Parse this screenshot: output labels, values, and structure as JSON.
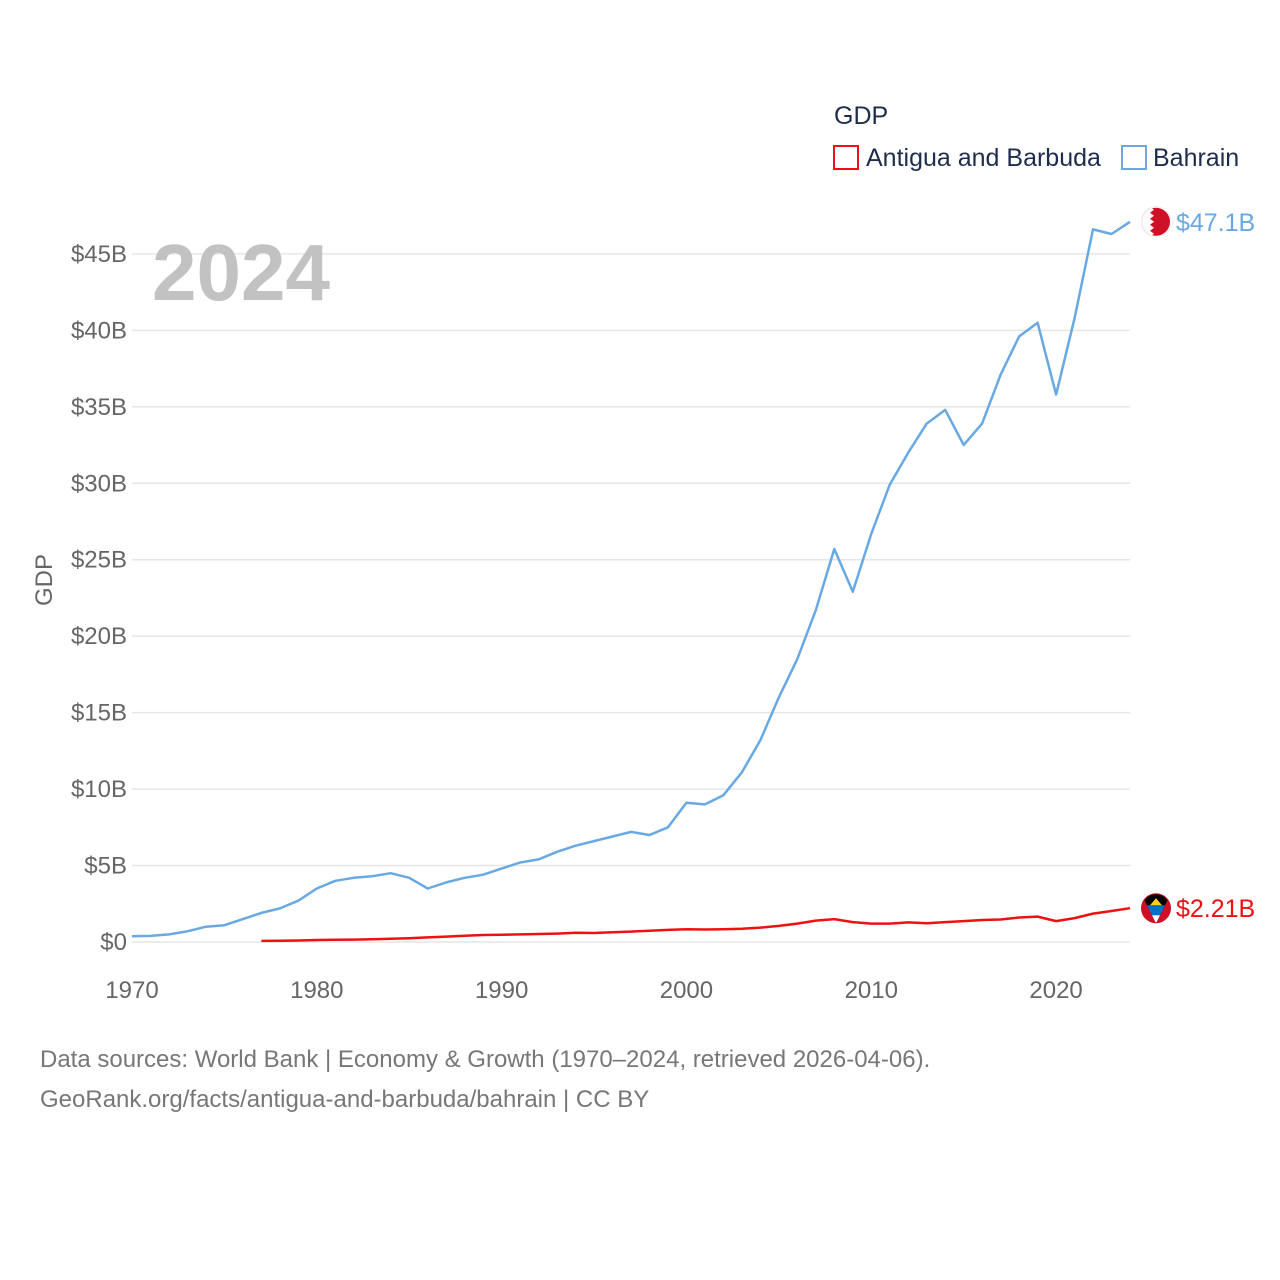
{
  "chart_data": {
    "type": "line",
    "year_display": "2024",
    "ylabel": "GDP",
    "xlim": [
      1970,
      2024
    ],
    "ylim": [
      0,
      48000000000
    ],
    "x_ticks": [
      1970,
      1980,
      1990,
      2000,
      2010,
      2020
    ],
    "x_tick_labels": [
      "1970",
      "1980",
      "1990",
      "2000",
      "2010",
      "2020"
    ],
    "y_ticks": [
      0,
      5000000000,
      10000000000,
      15000000000,
      20000000000,
      25000000000,
      30000000000,
      35000000000,
      40000000000,
      45000000000
    ],
    "y_tick_labels": [
      "$0",
      "$5B",
      "$10B",
      "$15B",
      "$20B",
      "$25B",
      "$30B",
      "$35B",
      "$40B",
      "$45B"
    ],
    "legend": {
      "title": "GDP",
      "position": "top-right",
      "entries": [
        "Antigua and Barbuda",
        "Bahrain"
      ]
    },
    "series": [
      {
        "name": "Antigua and Barbuda",
        "color": "#ee1111",
        "end_label": "$2.21B",
        "flag_icon": "antigua-flag-icon",
        "x": [
          1977,
          1978,
          1979,
          1980,
          1981,
          1982,
          1983,
          1984,
          1985,
          1986,
          1987,
          1988,
          1989,
          1990,
          1991,
          1992,
          1993,
          1994,
          1995,
          1996,
          1997,
          1998,
          1999,
          2000,
          2001,
          2002,
          2003,
          2004,
          2005,
          2006,
          2007,
          2008,
          2009,
          2010,
          2011,
          2012,
          2013,
          2014,
          2015,
          2016,
          2017,
          2018,
          2019,
          2020,
          2021,
          2022,
          2023,
          2024
        ],
        "values": [
          70000000,
          80000000,
          100000000,
          130000000,
          150000000,
          160000000,
          180000000,
          210000000,
          250000000,
          300000000,
          350000000,
          410000000,
          460000000,
          480000000,
          500000000,
          520000000,
          550000000,
          600000000,
          590000000,
          640000000,
          680000000,
          740000000,
          790000000,
          830000000,
          820000000,
          830000000,
          870000000,
          940000000,
          1050000000,
          1200000000,
          1400000000,
          1500000000,
          1300000000,
          1200000000,
          1200000000,
          1280000000,
          1230000000,
          1300000000,
          1370000000,
          1440000000,
          1470000000,
          1600000000,
          1660000000,
          1370000000,
          1560000000,
          1860000000,
          2030000000,
          2210000000
        ]
      },
      {
        "name": "Bahrain",
        "color": "#69a9e3",
        "end_label": "$47.1B",
        "flag_icon": "bahrain-flag-icon",
        "x": [
          1970,
          1971,
          1972,
          1973,
          1974,
          1975,
          1976,
          1977,
          1978,
          1979,
          1980,
          1981,
          1982,
          1983,
          1984,
          1985,
          1986,
          1987,
          1988,
          1989,
          1990,
          1991,
          1992,
          1993,
          1994,
          1995,
          1996,
          1997,
          1998,
          1999,
          2000,
          2001,
          2002,
          2003,
          2004,
          2005,
          2006,
          2007,
          2008,
          2009,
          2010,
          2011,
          2012,
          2013,
          2014,
          2015,
          2016,
          2017,
          2018,
          2019,
          2020,
          2021,
          2022,
          2023,
          2024
        ],
        "values": [
          380000000,
          400000000,
          500000000,
          700000000,
          1000000000,
          1100000000,
          1500000000,
          1900000000,
          2200000000,
          2700000000,
          3500000000,
          4000000000,
          4200000000,
          4300000000,
          4500000000,
          4200000000,
          3500000000,
          3900000000,
          4200000000,
          4400000000,
          4800000000,
          5200000000,
          5400000000,
          5900000000,
          6300000000,
          6600000000,
          6900000000,
          7200000000,
          7000000000,
          7500000000,
          9100000000,
          9000000000,
          9600000000,
          11100000000,
          13200000000,
          16000000000,
          18500000000,
          21700000000,
          25700000000,
          22900000000,
          26700000000,
          29900000000,
          32000000000,
          33900000000,
          34800000000,
          32500000000,
          33900000000,
          37100000000,
          39600000000,
          40500000000,
          35800000000,
          40800000000,
          46600000000,
          46300000000,
          47100000000
        ]
      }
    ]
  },
  "source": {
    "line1": "Data sources: World Bank | Economy & Growth (1970–2024, retrieved 2026-04-06).",
    "line2": "GeoRank.org/facts/antigua-and-barbuda/bahrain | CC BY"
  }
}
